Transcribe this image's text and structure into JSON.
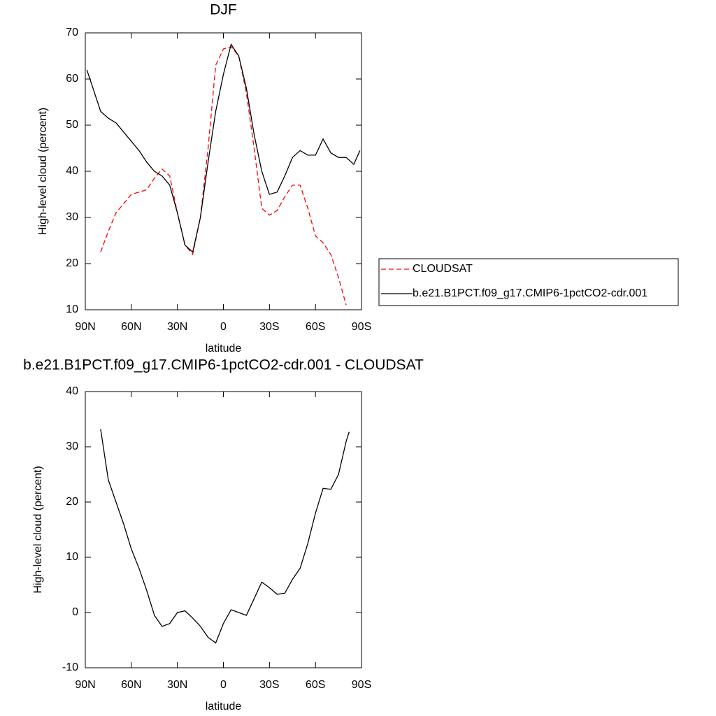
{
  "chart_data": [
    {
      "type": "line",
      "title": "DJF",
      "x_label": "latitude",
      "y_label": "High-level cloud (percent)",
      "xlim": [
        90,
        -90
      ],
      "xticks": [
        {
          "value": 90,
          "label": "90N"
        },
        {
          "value": 60,
          "label": "60N"
        },
        {
          "value": 30,
          "label": "30N"
        },
        0,
        {
          "value": -30,
          "label": "30S"
        },
        {
          "value": -60,
          "label": "60S"
        },
        {
          "value": -90,
          "label": "90S"
        }
      ],
      "ylim": [
        10,
        70
      ],
      "yticks": [
        10,
        20,
        30,
        40,
        50,
        60,
        70
      ],
      "legend": "outside-right",
      "x": [
        89,
        85,
        80,
        75,
        70,
        65,
        60,
        55,
        50,
        45,
        40,
        35,
        30,
        25,
        20,
        15,
        10,
        5,
        0,
        -5,
        -10,
        -15,
        -20,
        -25,
        -30,
        -35,
        -40,
        -45,
        -50,
        -55,
        -60,
        -65,
        -70,
        -75,
        -80,
        -85,
        -89
      ],
      "series": [
        {
          "name": "CLOUDSAT",
          "color": "#ff0000",
          "line_style": "dashed",
          "values": [
            null,
            null,
            22.5,
            27,
            31,
            33,
            35,
            35.5,
            36,
            38.5,
            40.5,
            39,
            31,
            24,
            22,
            30,
            45,
            63,
            66.5,
            67,
            65,
            57,
            45,
            32,
            30.5,
            31.5,
            34.5,
            37,
            37,
            32,
            26,
            24.5,
            22,
            17,
            11,
            null,
            null
          ]
        },
        {
          "name": "b.e21.B1PCT.f09_g17.CMIP6-1pctCO2-cdr.001",
          "color": "#000000",
          "line_style": "solid",
          "values": [
            62,
            58,
            53,
            51.5,
            50.5,
            48.5,
            46.5,
            44.5,
            42,
            40,
            39,
            37,
            31,
            24,
            22.5,
            30,
            42,
            53,
            61,
            67.5,
            65,
            58,
            48,
            40,
            35,
            35.5,
            39,
            43,
            44.5,
            43.5,
            43.5,
            47,
            44,
            43,
            43,
            41.5,
            44.5
          ]
        }
      ]
    },
    {
      "type": "line",
      "title": "b.e21.B1PCT.f09_g17.CMIP6-1pctCO2-cdr.001 - CLOUDSAT",
      "x_label": "latitude",
      "y_label": "High-level cloud (percent)",
      "xlim": [
        90,
        -90
      ],
      "xticks": [
        {
          "value": 90,
          "label": "90N"
        },
        {
          "value": 60,
          "label": "60N"
        },
        {
          "value": 30,
          "label": "30N"
        },
        0,
        {
          "value": -30,
          "label": "30S"
        },
        {
          "value": -60,
          "label": "60S"
        },
        {
          "value": -90,
          "label": "90S"
        }
      ],
      "ylim": [
        -10,
        40
      ],
      "yticks": [
        -10,
        0,
        10,
        20,
        30,
        40
      ],
      "x": [
        80,
        75,
        70,
        65,
        60,
        55,
        50,
        45,
        40,
        35,
        30,
        25,
        20,
        15,
        10,
        5,
        0,
        -5,
        -10,
        -15,
        -20,
        -25,
        -30,
        -35,
        -40,
        -45,
        -50,
        -55,
        -60,
        -65,
        -70,
        -75,
        -80,
        -82
      ],
      "series": [
        {
          "color": "#000000",
          "line_style": "solid",
          "values": [
            33.2,
            24,
            20,
            16,
            11.5,
            8,
            4,
            -0.5,
            -2.5,
            -2,
            0,
            0.3,
            -1,
            -2.5,
            -4.5,
            -5.5,
            -2,
            0.5,
            0,
            -0.5,
            2.5,
            5.5,
            4.5,
            3.3,
            3.5,
            6,
            8,
            12.5,
            18,
            22.5,
            22.3,
            25,
            31,
            32.7
          ]
        }
      ]
    }
  ]
}
